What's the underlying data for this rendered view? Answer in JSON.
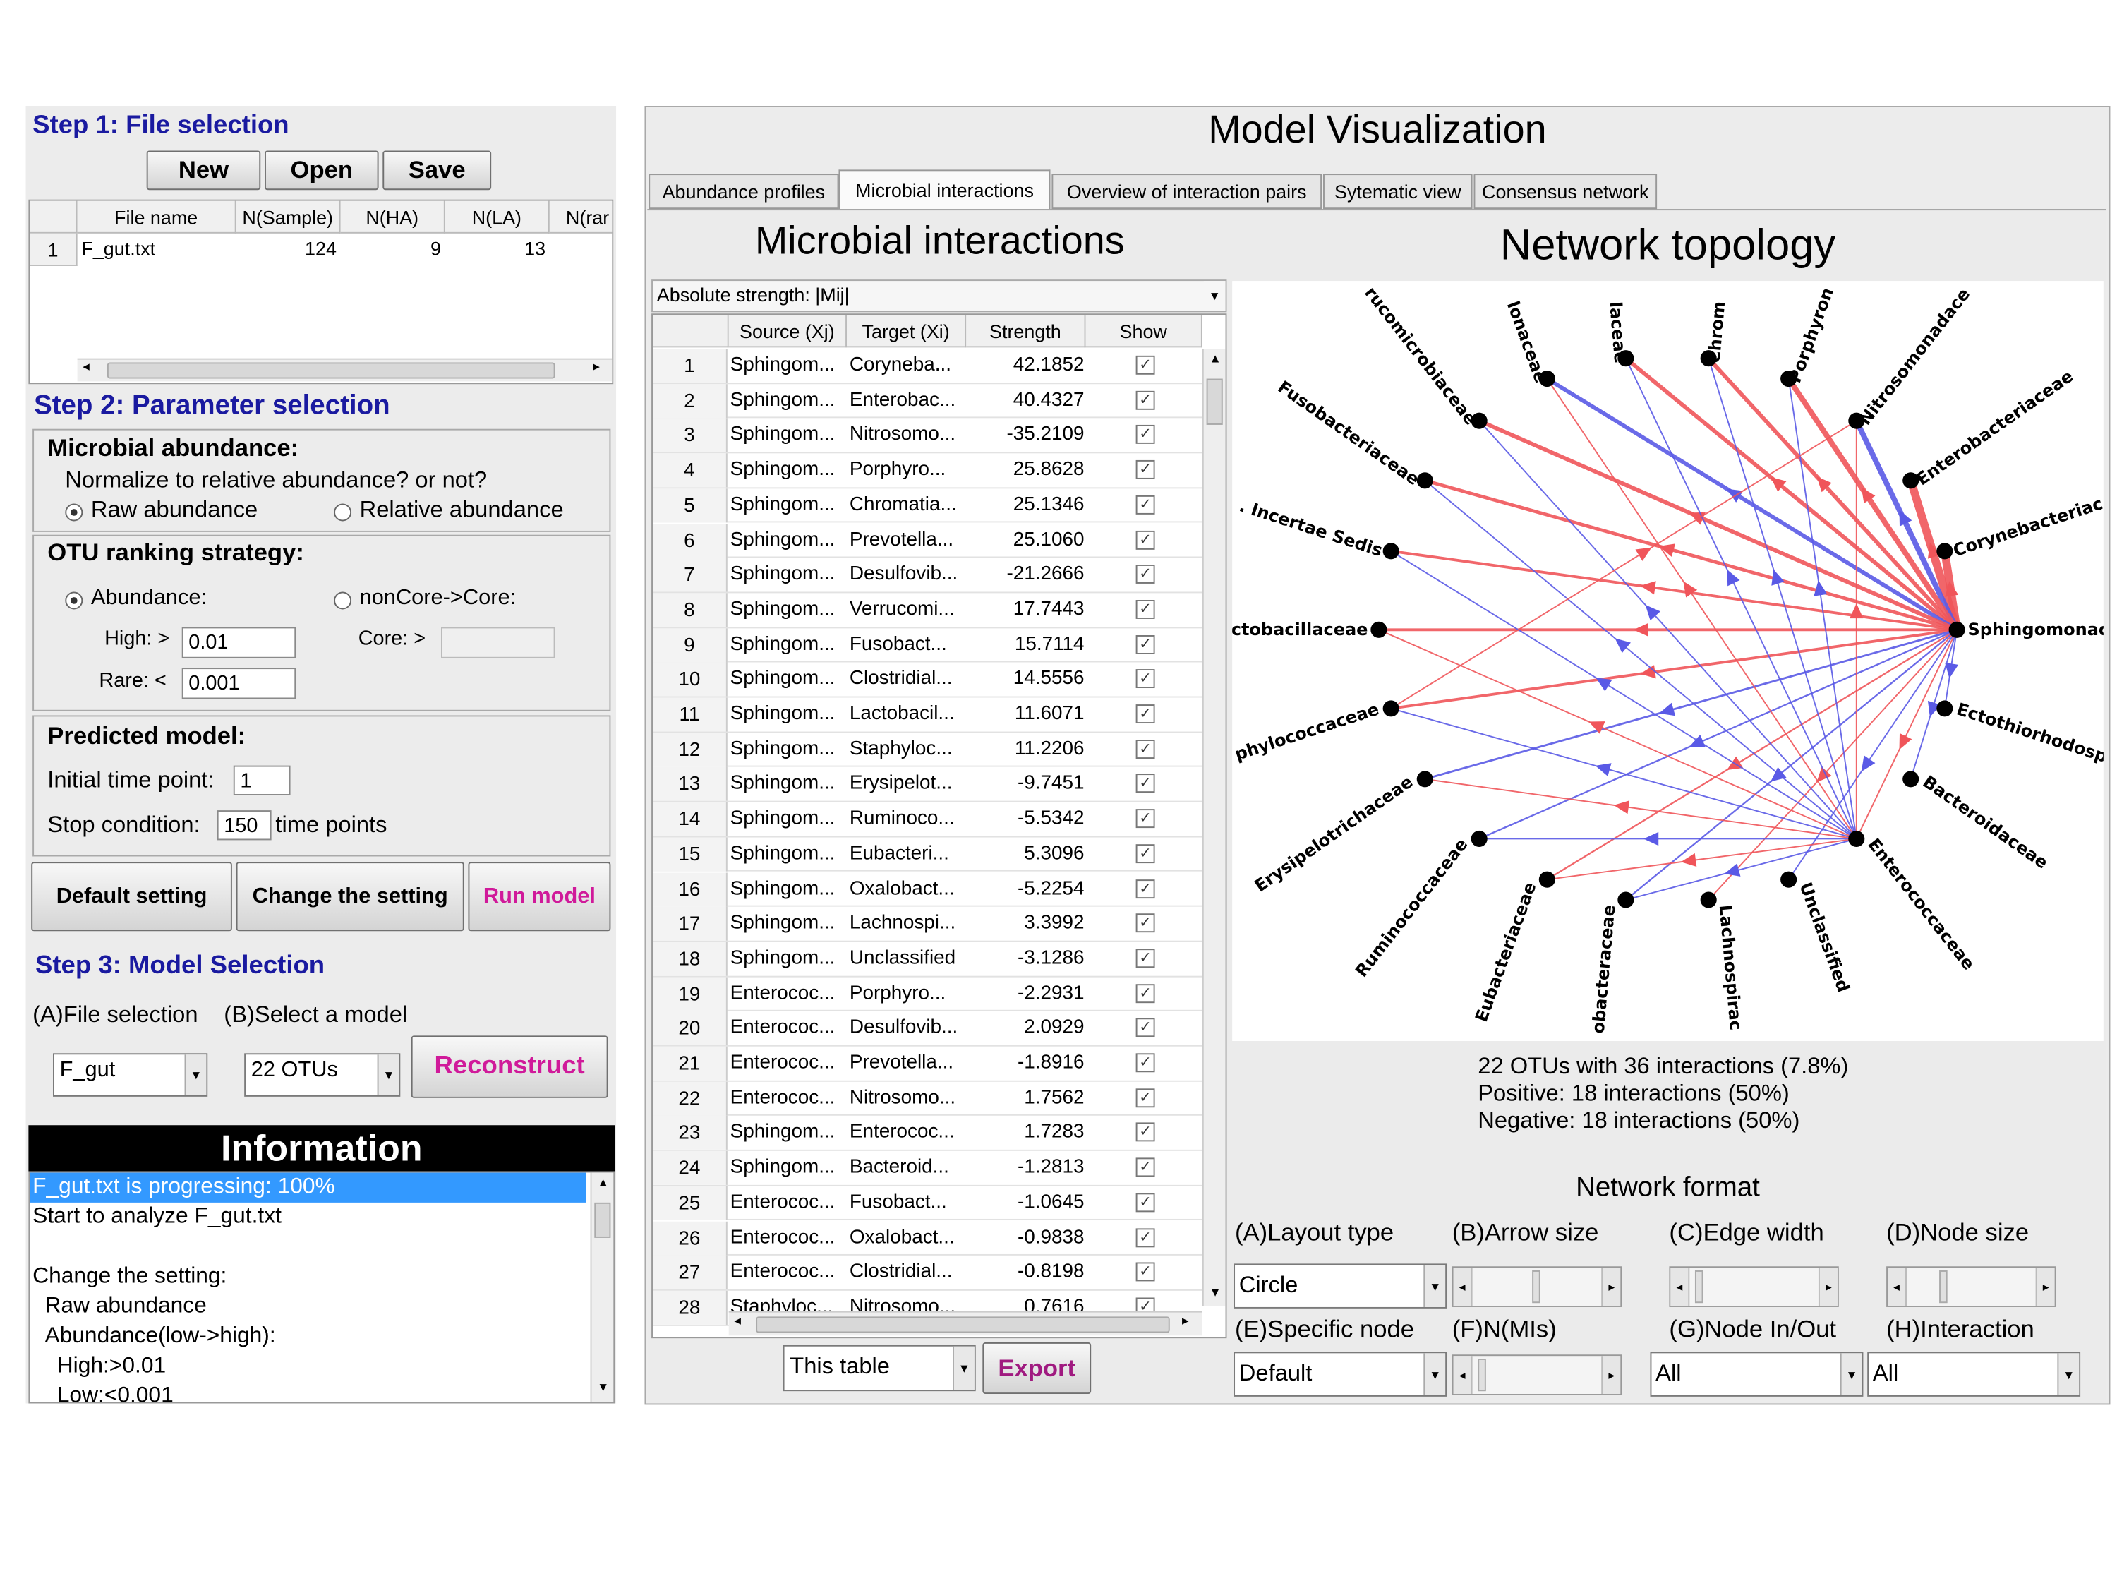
{
  "step1": {
    "title": "Step 1: File selection",
    "new_label": "New",
    "open_label": "Open",
    "save_label": "Save",
    "columns": [
      "File name",
      "N(Sample)",
      "N(HA)",
      "N(LA)",
      "N(rar"
    ],
    "rows": [
      {
        "idx": "1",
        "name": "F_gut.txt",
        "sample": "124",
        "ha": "9",
        "la": "13"
      }
    ]
  },
  "step2": {
    "title": "Step 2: Parameter selection",
    "abundance_heading": "Microbial abundance:",
    "normalize_q": "Normalize to relative abundance? or not?",
    "raw": "Raw abundance",
    "relative": "Relative abundance",
    "ranking_heading": "OTU ranking strategy:",
    "abundance": "Abundance:",
    "noncore": "nonCore->Core:",
    "high_label": "High: >",
    "high_value": "0.01",
    "core_label": "Core: >",
    "rare_label": "Rare: <",
    "rare_value": "0.001",
    "predicted_heading": "Predicted model:",
    "initial_label": "Initial time point:",
    "initial_value": "1",
    "stop_label": "Stop condition:",
    "stop_value": "150",
    "stop_suffix": "time points",
    "default_btn": "Default setting",
    "change_btn": "Change the setting",
    "run_btn": "Run model"
  },
  "step3": {
    "title": "Step 3: Model Selection",
    "file_sel_label": "(A)File selection",
    "model_sel_label": "(B)Select a model",
    "file_value": "F_gut",
    "model_value": "22 OTUs",
    "reconstruct_btn": "Reconstruct"
  },
  "info": {
    "title": "Information",
    "lines": [
      "F_gut.txt is progressing: 100%",
      "Start to analyze F_gut.txt",
      "",
      "Change the setting:",
      "Raw abundance",
      "Abundance(low->high):",
      "High:>0.01",
      "Low:<0.001"
    ]
  },
  "viz": {
    "title": "Model Visualization",
    "tabs": [
      "Abundance profiles",
      "Microbial interactions",
      "Overview of interaction pairs",
      "Sytematic view",
      "Consensus network"
    ]
  },
  "interactions": {
    "title": "Microbial interactions",
    "strength_select": "Absolute strength: |Mij|",
    "columns": [
      "Source (Xj)",
      "Target (Xi)",
      "Strength",
      "Show"
    ],
    "rows": [
      [
        "1",
        "Sphingom...",
        "Coryneba...",
        "42.1852"
      ],
      [
        "2",
        "Sphingom...",
        "Enterobac...",
        "40.4327"
      ],
      [
        "3",
        "Sphingom...",
        "Nitrosomo...",
        "-35.2109"
      ],
      [
        "4",
        "Sphingom...",
        "Porphyro...",
        "25.8628"
      ],
      [
        "5",
        "Sphingom...",
        "Chromatia...",
        "25.1346"
      ],
      [
        "6",
        "Sphingom...",
        "Prevotella...",
        "25.1060"
      ],
      [
        "7",
        "Sphingom...",
        "Desulfovib...",
        "-21.2666"
      ],
      [
        "8",
        "Sphingom...",
        "Verrucomi...",
        "17.7443"
      ],
      [
        "9",
        "Sphingom...",
        "Fusobact...",
        "15.7114"
      ],
      [
        "10",
        "Sphingom...",
        "Clostridial...",
        "14.5556"
      ],
      [
        "11",
        "Sphingom...",
        "Lactobacil...",
        "11.6071"
      ],
      [
        "12",
        "Sphingom...",
        "Staphyloc...",
        "11.2206"
      ],
      [
        "13",
        "Sphingom...",
        "Erysipelot...",
        "-9.7451"
      ],
      [
        "14",
        "Sphingom...",
        "Ruminoco...",
        "-5.5342"
      ],
      [
        "15",
        "Sphingom...",
        "Eubacteri...",
        "5.3096"
      ],
      [
        "16",
        "Sphingom...",
        "Oxalobact...",
        "-5.2254"
      ],
      [
        "17",
        "Sphingom...",
        "Lachnospi...",
        "3.3992"
      ],
      [
        "18",
        "Sphingom...",
        "Unclassified",
        "-3.1286"
      ],
      [
        "19",
        "Enterococ...",
        "Porphyro...",
        "-2.2931"
      ],
      [
        "20",
        "Enterococ...",
        "Desulfovib...",
        "2.0929"
      ],
      [
        "21",
        "Enterococ...",
        "Prevotella...",
        "-1.8916"
      ],
      [
        "22",
        "Enterococ...",
        "Nitrosomo...",
        "1.7562"
      ],
      [
        "23",
        "Sphingom...",
        "Enterococ...",
        "1.7283"
      ],
      [
        "24",
        "Sphingom...",
        "Bacteroid...",
        "-1.2813"
      ],
      [
        "25",
        "Enterococ...",
        "Fusobact...",
        "-1.0645"
      ],
      [
        "26",
        "Enterococ...",
        "Oxalobact...",
        "-0.9838"
      ],
      [
        "27",
        "Enterococ...",
        "Clostridial...",
        "-0.8198"
      ],
      [
        "28",
        "Staphyloc...",
        "Nitrosomo...",
        "0.7616"
      ]
    ],
    "scope_select": "This table",
    "export_btn": "Export"
  },
  "network": {
    "title": "Network topology",
    "nodes": [
      "Sphingomonac",
      "Ectothiorhodosp",
      "Bacteroidaceae",
      "Enterococcaceae",
      "Unclassified",
      "Lachnospirac",
      "obacteraceae",
      "Eubacteriaceae",
      "Ruminococcaceae",
      "Erysipelotrichaceae",
      "phylococcaceae",
      "ctobacillaceae",
      ". Incertae Sedis",
      "Fusobacteriaceae",
      "rucomicrobiaceae",
      "lonaceae",
      "laceae",
      "Chrom",
      "Porphyron",
      "Nitrosomonadace",
      "Enterobacteriaceae",
      "Corynebacteriac"
    ],
    "summary": [
      "22 OTUs with 36 interactions (7.8%)",
      "Positive: 18 interactions (50%)",
      "Negative: 18 interactions (50%)"
    ],
    "positive_color": "#f0555a",
    "negative_color": "#5a5ae6"
  },
  "format": {
    "title": "Network format",
    "layout_label": "(A)Layout type",
    "arrow_label": "(B)Arrow size",
    "edge_label": "(C)Edge width",
    "node_label": "(D)Node size",
    "layout_value": "Circle",
    "specific_label": "(E)Specific node",
    "nmis_label": "(F)N(MIs)",
    "inout_label": "(G)Node In/Out",
    "inter_label": "(H)Interaction",
    "specific_value": "Default",
    "inout_value": "All",
    "inter_value": "All"
  }
}
